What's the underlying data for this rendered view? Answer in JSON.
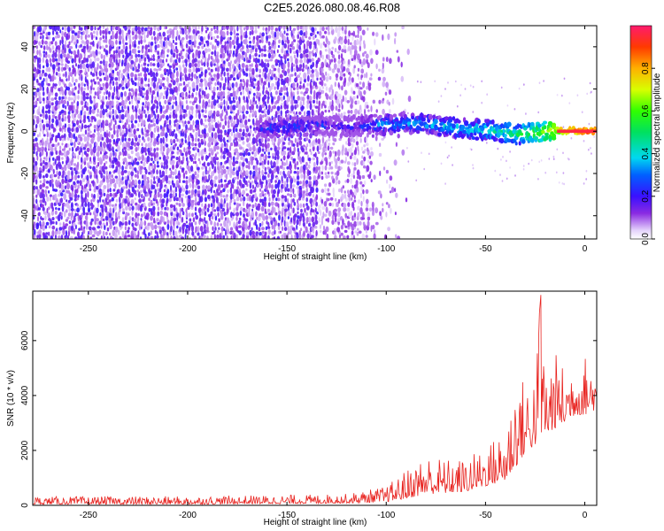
{
  "title": "C2E5.2026.080.08.46.R08",
  "colors": {
    "spectrum_low": "#8a2be2",
    "snr_line": "#e8231f",
    "axis": "#000000"
  },
  "chart_data": [
    {
      "type": "heatmap",
      "name": "spectrogram",
      "xlabel": "Height of straight line (km)",
      "ylabel": "Frequency (Hz)",
      "xlim": [
        -278,
        6
      ],
      "ylim": [
        -51,
        50
      ],
      "xticks": [
        -250,
        -200,
        -150,
        -100,
        -50,
        0
      ],
      "xtick_labels": [
        "-250",
        "-200",
        "-150",
        "-100",
        "-50",
        "0"
      ],
      "yticks": [
        -40,
        -20,
        0,
        20,
        40
      ],
      "ytick_labels": [
        "-40",
        "-20",
        "0",
        "20",
        "40"
      ],
      "noise_edge_km": [
        -110,
        -90
      ],
      "signal_band": [
        {
          "x": -165,
          "y": 1.0,
          "amp": 0.28
        },
        {
          "x": -150,
          "y": 2.0,
          "amp": 0.32
        },
        {
          "x": -135,
          "y": 3.0,
          "amp": 0.3
        },
        {
          "x": -120,
          "y": 2.0,
          "amp": 0.26
        },
        {
          "x": -105,
          "y": 3.0,
          "amp": 0.36
        },
        {
          "x": -90,
          "y": 4.0,
          "amp": 0.4
        },
        {
          "x": -75,
          "y": 3.0,
          "amp": 0.42
        },
        {
          "x": -60,
          "y": 1.0,
          "amp": 0.44
        },
        {
          "x": -45,
          "y": 0.5,
          "amp": 0.52
        },
        {
          "x": -35,
          "y": -1.5,
          "amp": 0.55
        },
        {
          "x": -25,
          "y": -1.0,
          "amp": 0.62
        },
        {
          "x": -15,
          "y": 0.5,
          "amp": 0.78
        },
        {
          "x": 0,
          "y": 0.0,
          "amp": 0.95
        },
        {
          "x": 6,
          "y": 0.0,
          "amp": 0.97
        }
      ],
      "colorbar": {
        "label": "Normalized spectral amplitude",
        "range": [
          0,
          1
        ],
        "ticks": [
          0.0,
          0.2,
          0.4,
          0.6,
          0.8
        ],
        "tick_labels": [
          "0.0",
          "0.2",
          "0.4",
          "0.6",
          "0.8"
        ]
      }
    },
    {
      "type": "line",
      "name": "snr",
      "xlabel": "Height of straight line (km)",
      "ylabel": "SNR (10 * v/v)",
      "xlim": [
        -278,
        6
      ],
      "ylim": [
        0,
        7800
      ],
      "xticks": [
        -250,
        -200,
        -150,
        -100,
        -50,
        0
      ],
      "xtick_labels": [
        "-250",
        "-200",
        "-150",
        "-100",
        "-50",
        "0"
      ],
      "yticks": [
        0,
        2000,
        4000,
        6000
      ],
      "ytick_labels": [
        "0",
        "2000",
        "4000",
        "6000"
      ],
      "series": [
        {
          "name": "SNR",
          "envelope": {
            "x": [
              -278,
              -200,
              -150,
              -120,
              -100,
              -90,
              -80,
              -70,
              -60,
              -50,
              -40,
              -35,
              -30,
              -25,
              -22,
              -20,
              -15,
              -10,
              -5,
              0,
              6
            ],
            "base": [
              40,
              40,
              60,
              80,
              120,
              250,
              400,
              450,
              500,
              700,
              900,
              1400,
              1900,
              2200,
              2600,
              2500,
              2800,
              3000,
              3300,
              3300,
              3500
            ],
            "peak": [
              320,
              330,
              380,
              420,
              700,
              1300,
              1900,
              1700,
              1700,
              2200,
              2800,
              4800,
              4600,
              5000,
              7800,
              5200,
              5600,
              5000,
              5400,
              5500,
              5200
            ]
          }
        }
      ]
    }
  ]
}
